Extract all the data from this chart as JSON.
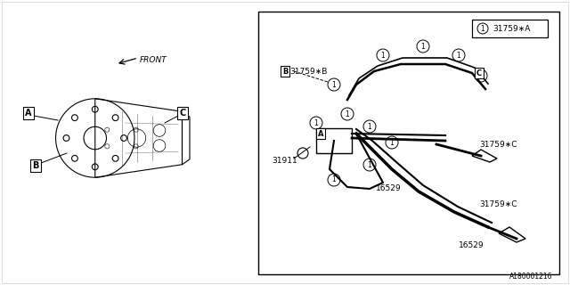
{
  "title": "",
  "bg_color": "#ffffff",
  "border_color": "#000000",
  "line_color": "#000000",
  "text_color": "#000000",
  "labels": {
    "16529_top": "16529",
    "16529_mid": "16529",
    "31759C_top": "31759∗C",
    "31759C_mid": "31759∗C",
    "31759B": "31759∗B",
    "31759A": "31759∗A",
    "31911": "31911",
    "front": "FRONT",
    "diagram_id": "A180001216",
    "legend_label": "31759∗A"
  },
  "callout_labels": {
    "A_left": "A",
    "B_left": "B",
    "C_left": "C",
    "A_right": "A",
    "B_right": "B",
    "C_right": "C"
  }
}
